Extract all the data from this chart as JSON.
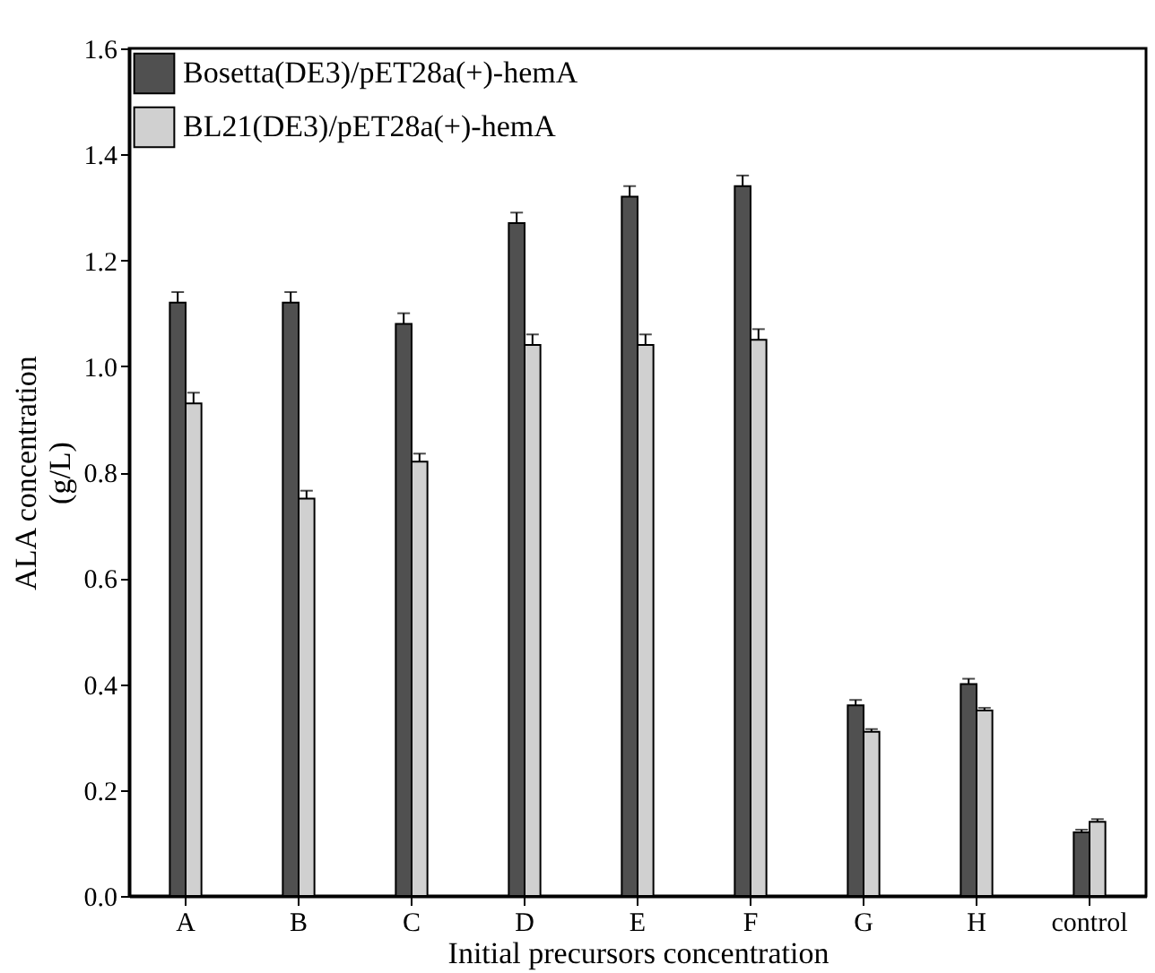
{
  "chart_data": {
    "type": "bar",
    "xlabel": "Initial precursors concentration",
    "ylabel": "ALA concentration\n(g/L)",
    "categories": [
      "A",
      "B",
      "C",
      "D",
      "E",
      "F",
      "G",
      "H",
      "control"
    ],
    "series": [
      {
        "name": "Bosetta(DE3)/pET28a(+)-hemA",
        "color": "#505050",
        "values": [
          1.12,
          1.12,
          1.08,
          1.27,
          1.32,
          1.34,
          0.36,
          0.4,
          0.12
        ],
        "errors": [
          0.02,
          0.02,
          0.02,
          0.02,
          0.02,
          0.02,
          0.01,
          0.01,
          0.005
        ]
      },
      {
        "name": "BL21(DE3)/pET28a(+)-hemA",
        "color": "#d0d0d0",
        "values": [
          0.93,
          0.75,
          0.82,
          1.04,
          1.04,
          1.05,
          0.31,
          0.35,
          0.14
        ],
        "errors": [
          0.02,
          0.015,
          0.015,
          0.02,
          0.02,
          0.02,
          0.005,
          0.005,
          0.005
        ]
      }
    ],
    "ylim": [
      0,
      1.6
    ],
    "yticks": [
      {
        "value": 0,
        "label": "0.0"
      },
      0.2,
      0.4,
      0.6,
      0.8,
      {
        "value": 1,
        "label": "1.0"
      },
      1.2,
      1.4,
      1.6
    ],
    "grid": false,
    "legend": "top left"
  }
}
